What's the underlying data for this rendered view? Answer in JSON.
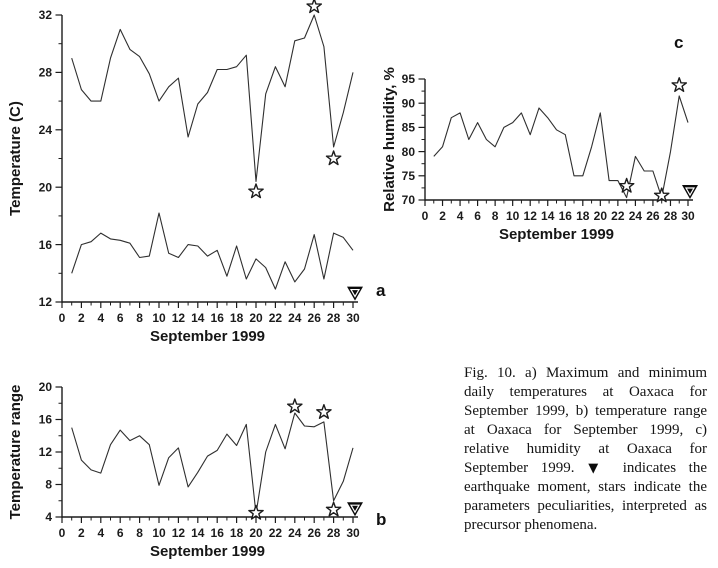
{
  "caption": {
    "part1": "Fig. 10. a) Maximum and minimum daily temperatures at Oaxaca for September 1999, b) temperature range at Oaxaca for September 1999, c) relative humidity at Oaxaca for September 1999.",
    "marker": "▼",
    "part2": "indicates the earthquake moment, stars indicate the parameters peculiarities, interpreted as precursor phenomena."
  },
  "colors": {
    "background": "#ffffff",
    "line": "#2f2f2f",
    "axis": "#1c1c1c",
    "marker_stroke": "#1c1c1c",
    "triangle_fill": "#0b0b0b",
    "text": "#1a1a1a"
  },
  "chart_data": [
    {
      "id": "a",
      "type": "line",
      "panel_label": "a",
      "title": "Maximum and minimum daily temperatures at Oaxaca",
      "xlabel": "September 1999",
      "ylabel": "Temperature (C)",
      "x": [
        1,
        2,
        3,
        4,
        5,
        6,
        7,
        8,
        9,
        10,
        11,
        12,
        13,
        14,
        15,
        16,
        17,
        18,
        19,
        20,
        21,
        22,
        23,
        24,
        25,
        26,
        27,
        28,
        29,
        30
      ],
      "xlim": [
        0,
        30
      ],
      "ylim": [
        12,
        32
      ],
      "xticks": [
        0,
        2,
        4,
        6,
        8,
        10,
        12,
        14,
        16,
        18,
        20,
        22,
        24,
        26,
        28,
        30
      ],
      "xminor_step": 1,
      "yticks": [
        12,
        16,
        20,
        24,
        28,
        32
      ],
      "yminor_step": 2,
      "grid": false,
      "series": [
        {
          "name": "maximum temperature",
          "values": [
            29,
            26.8,
            26,
            26,
            29,
            31,
            29.6,
            29.1,
            27.9,
            26,
            27,
            27.6,
            23.5,
            25.8,
            26.6,
            28.2,
            28.2,
            28.4,
            29.2,
            20.4,
            26.5,
            28.4,
            27,
            30.2,
            30.4,
            32,
            29.8,
            22.8,
            25.2,
            28
          ]
        },
        {
          "name": "minimum temperature",
          "values": [
            14,
            16,
            16.2,
            16.8,
            16.4,
            16.3,
            16.1,
            15.1,
            15.2,
            18.2,
            15.4,
            15.1,
            16,
            15.9,
            15.2,
            15.6,
            13.8,
            15.9,
            13.6,
            15,
            14.4,
            12.9,
            14.8,
            13.4,
            14.3,
            16.7,
            13.6,
            16.8,
            16.5,
            15.6
          ]
        }
      ],
      "stars": [
        [
          20,
          19.7
        ],
        [
          26,
          32.6
        ],
        [
          28,
          22.0
        ]
      ],
      "earthquake_marker": {
        "day": 30,
        "y": 12.1
      }
    },
    {
      "id": "b",
      "type": "line",
      "panel_label": "b",
      "title": "Temperature range at Oaxaca",
      "xlabel": "September 1999",
      "ylabel": "Temperature range",
      "x": [
        1,
        2,
        3,
        4,
        5,
        6,
        7,
        8,
        9,
        10,
        11,
        12,
        13,
        14,
        15,
        16,
        17,
        18,
        19,
        20,
        21,
        22,
        23,
        24,
        25,
        26,
        27,
        28,
        29,
        30
      ],
      "xlim": [
        0,
        30
      ],
      "ylim": [
        4,
        20
      ],
      "xticks": [
        0,
        2,
        4,
        6,
        8,
        10,
        12,
        14,
        16,
        18,
        20,
        22,
        24,
        26,
        28,
        30
      ],
      "xminor_step": 1,
      "yticks": [
        4,
        8,
        12,
        16,
        20
      ],
      "yminor_step": 2,
      "grid": false,
      "series": [
        {
          "name": "temperature range",
          "values": [
            15,
            11,
            9.8,
            9.4,
            12.9,
            14.7,
            13.4,
            14,
            12.9,
            7.9,
            11.3,
            12.5,
            7.7,
            9.5,
            11.5,
            12.2,
            14.2,
            12.8,
            15.4,
            4.4,
            12,
            15.4,
            12.4,
            16.8,
            15.2,
            15.1,
            15.7,
            6,
            8.4,
            12.5
          ]
        }
      ],
      "stars": [
        [
          20,
          4.5
        ],
        [
          24,
          17.6
        ],
        [
          27,
          16.9
        ],
        [
          28,
          4.9
        ]
      ],
      "earthquake_marker": {
        "day": 30,
        "y": 4.1
      }
    },
    {
      "id": "c",
      "type": "line",
      "panel_label": "c",
      "title": "Relative humidity at Oaxaca",
      "xlabel": "September 1999",
      "ylabel": "Relative humidity, %",
      "x": [
        1,
        2,
        3,
        4,
        5,
        6,
        7,
        8,
        9,
        10,
        11,
        12,
        13,
        14,
        15,
        16,
        17,
        18,
        19,
        20,
        21,
        22,
        23,
        24,
        25,
        26,
        27,
        28,
        29,
        30
      ],
      "xlim": [
        0,
        30
      ],
      "ylim": [
        70,
        95
      ],
      "xticks": [
        0,
        2,
        4,
        6,
        8,
        10,
        12,
        14,
        16,
        18,
        20,
        22,
        24,
        26,
        28,
        30
      ],
      "xminor_step": 1,
      "yticks": [
        70,
        75,
        80,
        85,
        90,
        95
      ],
      "yminor_step": 2.5,
      "grid": false,
      "series": [
        {
          "name": "relative humidity",
          "values": [
            79,
            81,
            87,
            88,
            82.5,
            86,
            82.5,
            81,
            85,
            86,
            88,
            83.5,
            89,
            87,
            84.5,
            83.5,
            75,
            75,
            81,
            88,
            74,
            74,
            70.5,
            79,
            76,
            76,
            70.5,
            80,
            91.5,
            86
          ]
        }
      ],
      "stars": [
        [
          23,
          72.9
        ],
        [
          27,
          70.9
        ],
        [
          29,
          93.7
        ]
      ],
      "earthquake_marker": {
        "day": 30,
        "y": 70.2
      }
    }
  ]
}
